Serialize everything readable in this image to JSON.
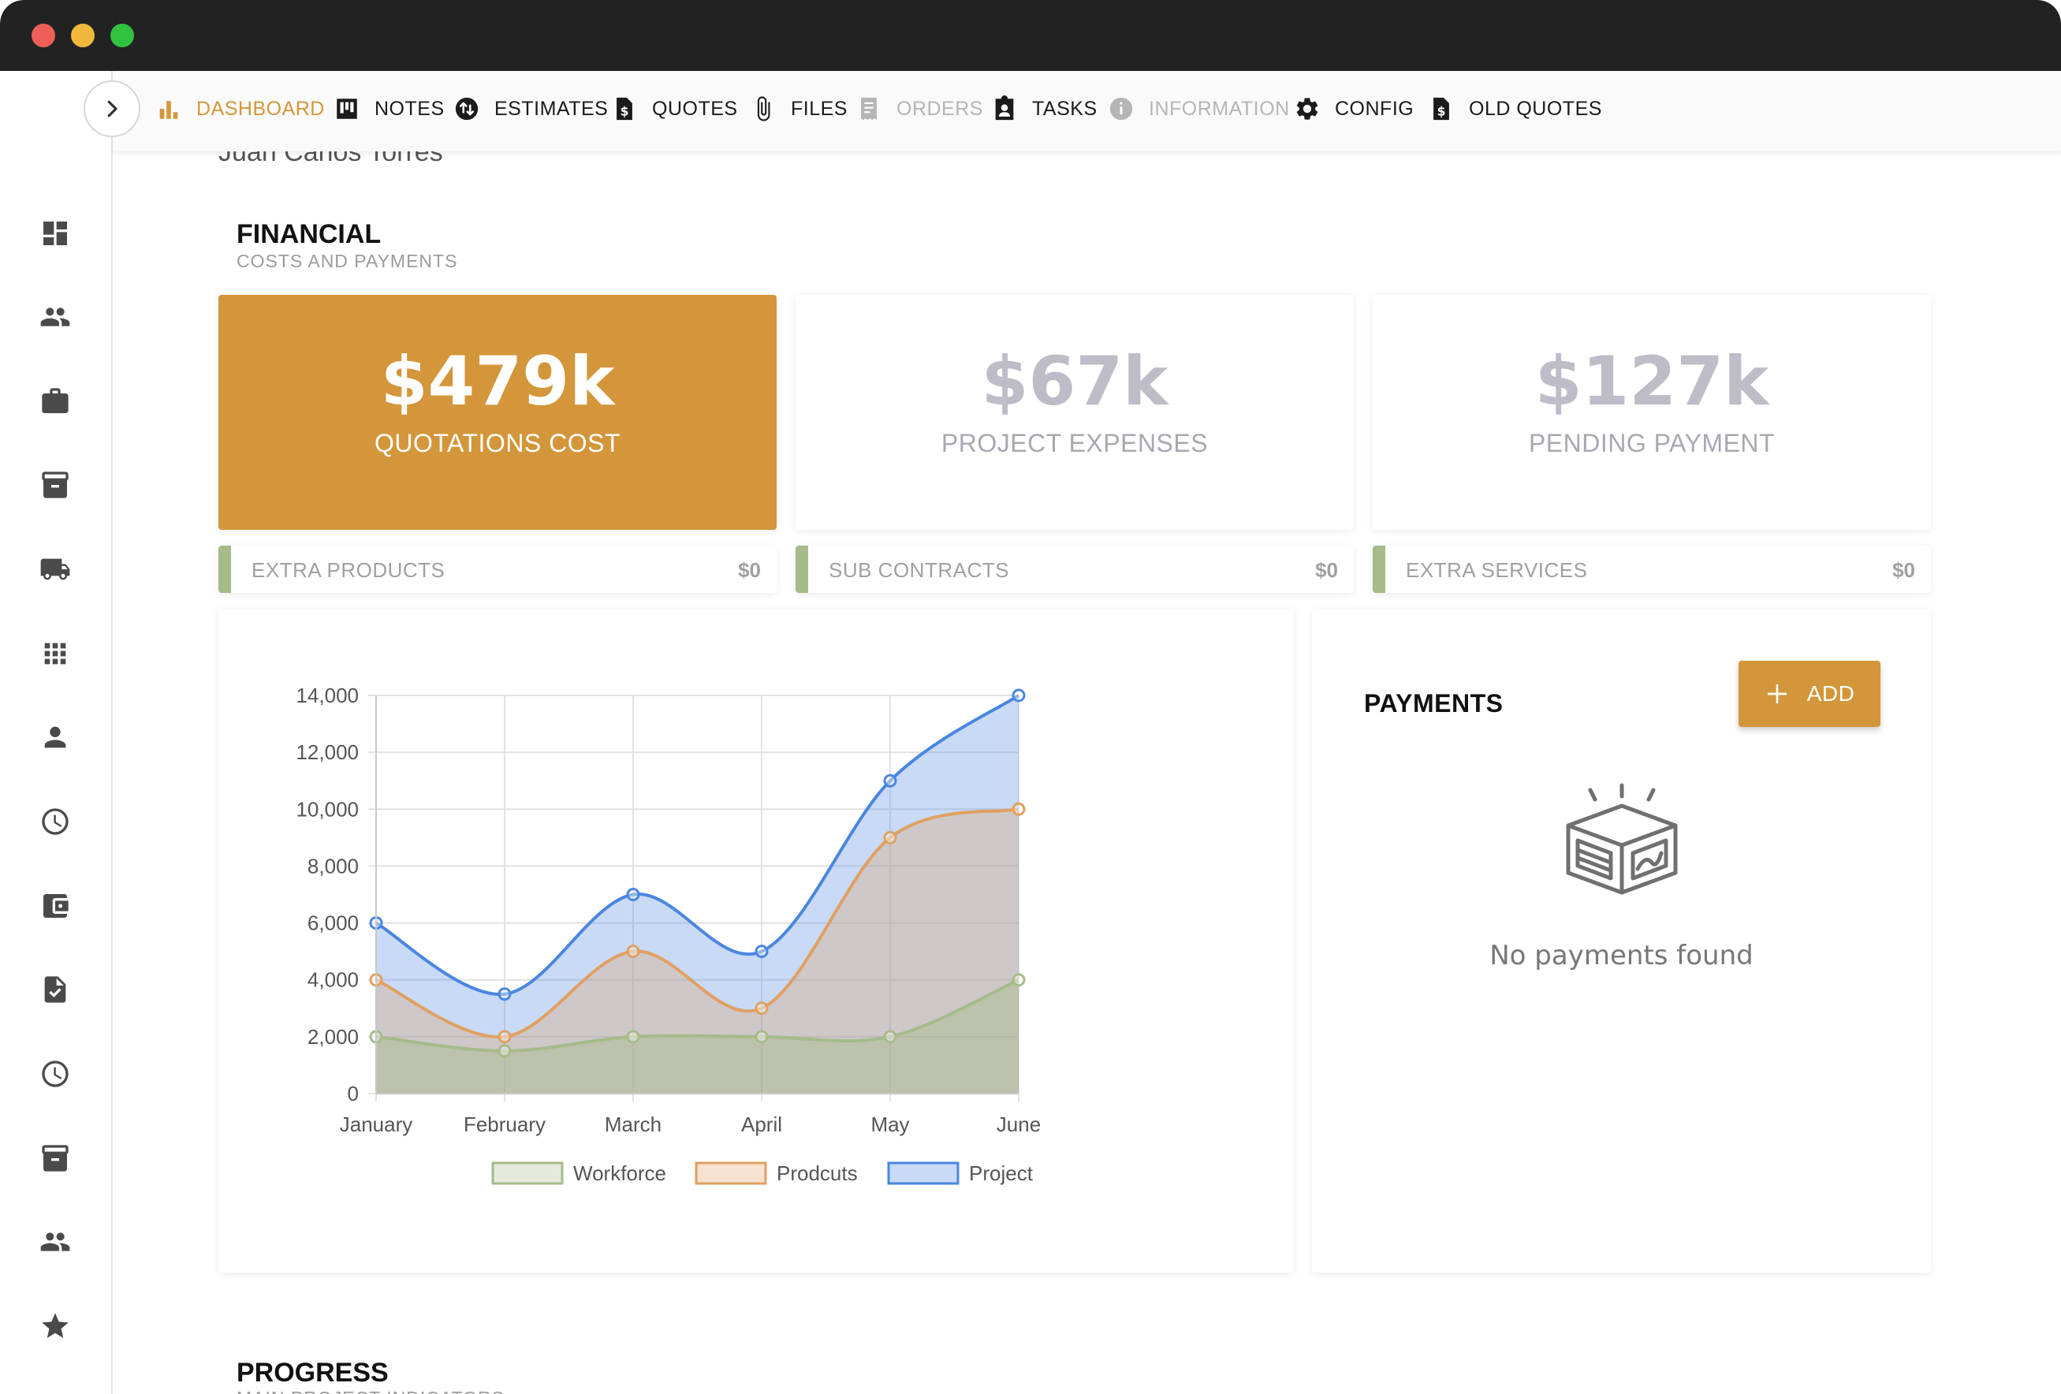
{
  "window": {
    "controls": [
      "close",
      "minimize",
      "zoom"
    ]
  },
  "nav": {
    "items": [
      {
        "label": "DASHBOARD",
        "icon": "bar-chart-icon",
        "active": true,
        "color": "#d4963a"
      },
      {
        "label": "NOTES",
        "icon": "notes-board-icon",
        "active": false,
        "color": "#1b1b1b"
      },
      {
        "label": "ESTIMATES",
        "icon": "sync-arrows-icon",
        "active": false,
        "color": "#1b1b1b"
      },
      {
        "label": "QUOTES",
        "icon": "dollar-document-icon",
        "active": false,
        "color": "#1b1b1b"
      },
      {
        "label": "FILES",
        "icon": "paperclip-icon",
        "active": false,
        "color": "#1b1b1b"
      },
      {
        "label": "ORDERS",
        "icon": "receipt-icon",
        "active": false,
        "disabled": true,
        "color": "#b5b5b5"
      },
      {
        "label": "TASKS",
        "icon": "clipboard-user-icon",
        "active": false,
        "color": "#1b1b1b"
      },
      {
        "label": "INFORMATION",
        "icon": "info-icon",
        "active": false,
        "disabled": true,
        "color": "#b5b5b5"
      },
      {
        "label": "CONFIG",
        "icon": "gear-icon",
        "active": false,
        "color": "#1b1b1b"
      },
      {
        "label": "OLD QUOTES",
        "icon": "dollar-document-icon",
        "active": false,
        "color": "#1b1b1b"
      }
    ]
  },
  "sidebar": {
    "icons": [
      "dashboard-icon",
      "people-icon",
      "briefcase-icon",
      "archive-icon",
      "truck-icon",
      "apps-grid-icon",
      "person-icon",
      "clock-icon",
      "wallet-icon",
      "checked-document-icon",
      "clock-icon",
      "archive-icon",
      "people-icon",
      "star-icon"
    ]
  },
  "client_name": "Juan Carlos Torres",
  "financial": {
    "title": "FINANCIAL",
    "subtitle": "COSTS AND PAYMENTS",
    "kpis": [
      {
        "value": "$479k",
        "label": "QUOTATIONS COST"
      },
      {
        "value": "$67k",
        "label": "PROJECT EXPENSES"
      },
      {
        "value": "$127k",
        "label": "PENDING PAYMENT"
      }
    ],
    "extras": [
      {
        "label": "EXTRA PRODUCTS",
        "value": "$0"
      },
      {
        "label": "SUB CONTRACTS",
        "value": "$0"
      },
      {
        "label": "EXTRA SERVICES",
        "value": "$0"
      }
    ]
  },
  "payments": {
    "title": "PAYMENTS",
    "add_label": "ADD",
    "empty_text": "No payments found",
    "empty_icon": "empty-box-icon"
  },
  "progress": {
    "title": "PROGRESS",
    "subtitle": "MAIN PROJECT INDICATORS"
  },
  "colors": {
    "accent": "#d4963a",
    "workforce": "#a5bb8a",
    "products": "#e0a060",
    "project": "#4a86e0"
  },
  "chart_data": {
    "type": "area",
    "categories": [
      "January",
      "February",
      "March",
      "April",
      "May",
      "June"
    ],
    "series": [
      {
        "name": "Workforce",
        "values": [
          2000,
          1500,
          2000,
          2000,
          2000,
          4000
        ],
        "color": "#a5bb8a"
      },
      {
        "name": "Prodcuts",
        "values": [
          4000,
          2000,
          5000,
          3000,
          9000,
          10000
        ],
        "color": "#e0a060"
      },
      {
        "name": "Project",
        "values": [
          6000,
          3500,
          7000,
          5000,
          11000,
          14000
        ],
        "color": "#4a86e0"
      }
    ],
    "ylim": [
      0,
      14000
    ],
    "yticks": [
      "0",
      "2,000",
      "4,000",
      "6,000",
      "8,000",
      "10,000",
      "12,000",
      "14,000"
    ],
    "grid": true,
    "legend": "bottom"
  }
}
